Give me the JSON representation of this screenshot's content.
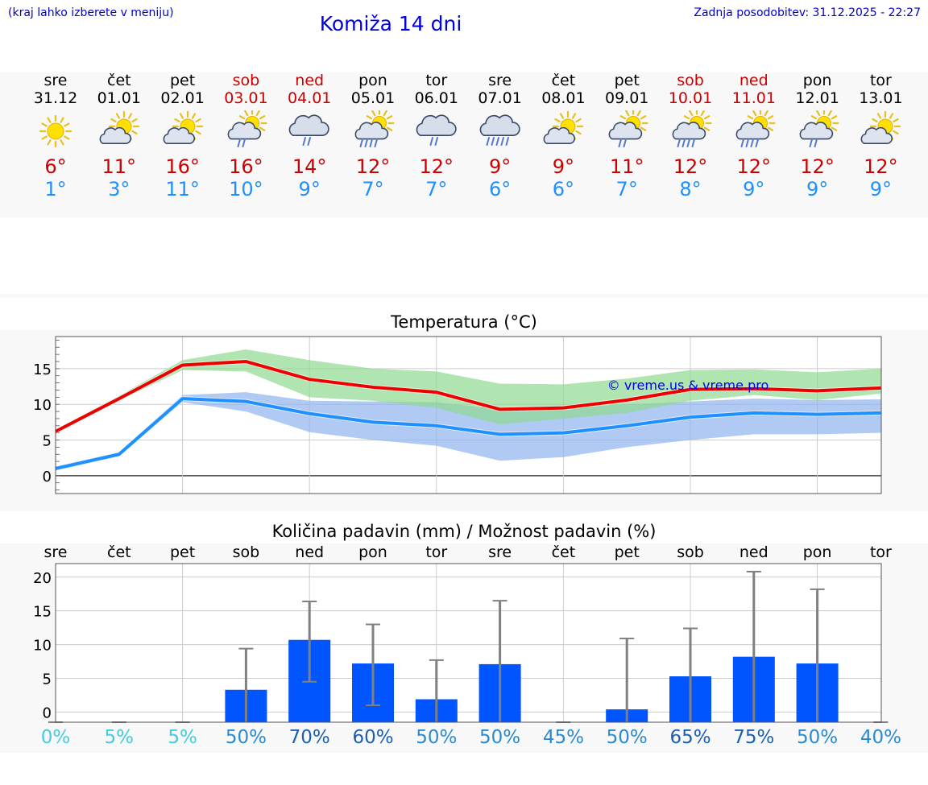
{
  "header": {
    "hint": "(kraj lahko izberete v meniju)",
    "title": "Komiža 14 dni",
    "updated": "Zadnja posodobitev: 31.12.2025 - 22:27"
  },
  "days": [
    {
      "name": "sre",
      "date": "31.12",
      "weekend": false,
      "icon": "sun",
      "max": "6°",
      "min": "1°"
    },
    {
      "name": "čet",
      "date": "01.01",
      "weekend": false,
      "icon": "cloud-sun",
      "max": "11°",
      "min": "3°"
    },
    {
      "name": "pet",
      "date": "02.01",
      "weekend": false,
      "icon": "cloud-sun",
      "max": "16°",
      "min": "11°"
    },
    {
      "name": "sob",
      "date": "03.01",
      "weekend": true,
      "icon": "sun-cloud-rain",
      "max": "16°",
      "min": "10°"
    },
    {
      "name": "ned",
      "date": "04.01",
      "weekend": true,
      "icon": "cloud-rain",
      "max": "14°",
      "min": "9°"
    },
    {
      "name": "pon",
      "date": "05.01",
      "weekend": false,
      "icon": "sun-cloud-heavy-rain",
      "max": "12°",
      "min": "7°"
    },
    {
      "name": "tor",
      "date": "06.01",
      "weekend": false,
      "icon": "cloud-rain",
      "max": "12°",
      "min": "7°"
    },
    {
      "name": "sre",
      "date": "07.01",
      "weekend": false,
      "icon": "cloud-heavy-rain",
      "max": "9°",
      "min": "6°"
    },
    {
      "name": "čet",
      "date": "08.01",
      "weekend": false,
      "icon": "cloud-sun",
      "max": "9°",
      "min": "6°"
    },
    {
      "name": "pet",
      "date": "09.01",
      "weekend": false,
      "icon": "sun-cloud-rain",
      "max": "11°",
      "min": "7°"
    },
    {
      "name": "sob",
      "date": "10.01",
      "weekend": true,
      "icon": "sun-cloud-heavy-rain",
      "max": "12°",
      "min": "8°"
    },
    {
      "name": "ned",
      "date": "11.01",
      "weekend": true,
      "icon": "sun-cloud-heavy-rain",
      "max": "12°",
      "min": "9°"
    },
    {
      "name": "pon",
      "date": "12.01",
      "weekend": false,
      "icon": "sun-cloud-rain",
      "max": "12°",
      "min": "9°"
    },
    {
      "name": "tor",
      "date": "13.01",
      "weekend": false,
      "icon": "cloud-sun",
      "max": "12°",
      "min": "9°"
    }
  ],
  "chart_data": [
    {
      "type": "line",
      "title": "Temperatura (°C)",
      "watermark": "© vreme.us & vreme.pro",
      "ylim": [
        -2.5,
        19.5
      ],
      "yticks": [
        0,
        5,
        10,
        15
      ],
      "x": [
        0,
        1,
        2,
        3,
        4,
        5,
        6,
        7,
        8,
        9,
        10,
        11,
        12,
        13
      ],
      "series": [
        {
          "name": "max",
          "color": "#ee0000",
          "values": [
            6.2,
            10.8,
            15.5,
            16.0,
            13.5,
            12.4,
            11.7,
            9.3,
            9.5,
            10.6,
            12.1,
            12.2,
            11.9,
            12.3
          ],
          "band_low": [
            6.0,
            10.5,
            14.8,
            14.6,
            11.0,
            10.5,
            9.5,
            7.2,
            8.0,
            8.8,
            10.5,
            11.3,
            10.6,
            11.5
          ],
          "band_high": [
            6.4,
            11.2,
            16.2,
            17.7,
            16.2,
            15.0,
            14.6,
            12.9,
            12.8,
            13.6,
            14.8,
            14.9,
            14.5,
            15.0
          ],
          "band_color": "#8ed88e"
        },
        {
          "name": "min",
          "color": "#1e90ff",
          "values": [
            1.0,
            3.0,
            10.8,
            10.4,
            8.7,
            7.5,
            7.0,
            5.8,
            6.0,
            7.0,
            8.2,
            8.8,
            8.6,
            8.8
          ],
          "band_low": [
            0.7,
            2.7,
            10.3,
            9.0,
            6.1,
            5.0,
            4.2,
            2.1,
            2.6,
            4.0,
            5.0,
            5.8,
            5.8,
            6.0
          ],
          "band_high": [
            1.3,
            3.3,
            11.3,
            11.7,
            10.5,
            10.4,
            10.3,
            9.3,
            9.5,
            10.0,
            10.4,
            10.8,
            10.6,
            10.7
          ],
          "band_color": "#8fb3ee"
        }
      ]
    },
    {
      "type": "bar",
      "title": "Količina padavin (mm) / Možnost padavin (%)",
      "categories": [
        "sre",
        "čet",
        "pet",
        "sob",
        "ned",
        "pon",
        "tor",
        "sre",
        "čet",
        "pet",
        "sob",
        "ned",
        "pon",
        "tor"
      ],
      "ylim": [
        -1.5,
        22
      ],
      "yticks": [
        0,
        5,
        10,
        15,
        20
      ],
      "values": [
        0,
        0,
        0,
        3.3,
        10.7,
        7.2,
        1.9,
        7.1,
        0,
        0.4,
        5.3,
        8.2,
        7.2,
        0
      ],
      "err_low": [
        0,
        0,
        0,
        0,
        4.5,
        1.0,
        0,
        0,
        0,
        0,
        0,
        0,
        0,
        0
      ],
      "err_high": [
        0,
        0,
        0,
        9.4,
        16.4,
        13.0,
        7.7,
        16.5,
        0,
        10.9,
        12.4,
        20.8,
        18.2,
        0
      ],
      "bar_color": "#0055ff",
      "probabilities": [
        "0%",
        "5%",
        "5%",
        "50%",
        "70%",
        "60%",
        "50%",
        "50%",
        "45%",
        "50%",
        "65%",
        "75%",
        "50%",
        "40%"
      ],
      "prob_colors": [
        "#44ccdd",
        "#44ccdd",
        "#44ccdd",
        "#2a8ad0",
        "#1a5fb0",
        "#1a5fb0",
        "#2a8ad0",
        "#2a8ad0",
        "#2a8ad0",
        "#2a8ad0",
        "#1a5fb0",
        "#1a5fb0",
        "#2a8ad0",
        "#2a8ad0"
      ]
    }
  ]
}
